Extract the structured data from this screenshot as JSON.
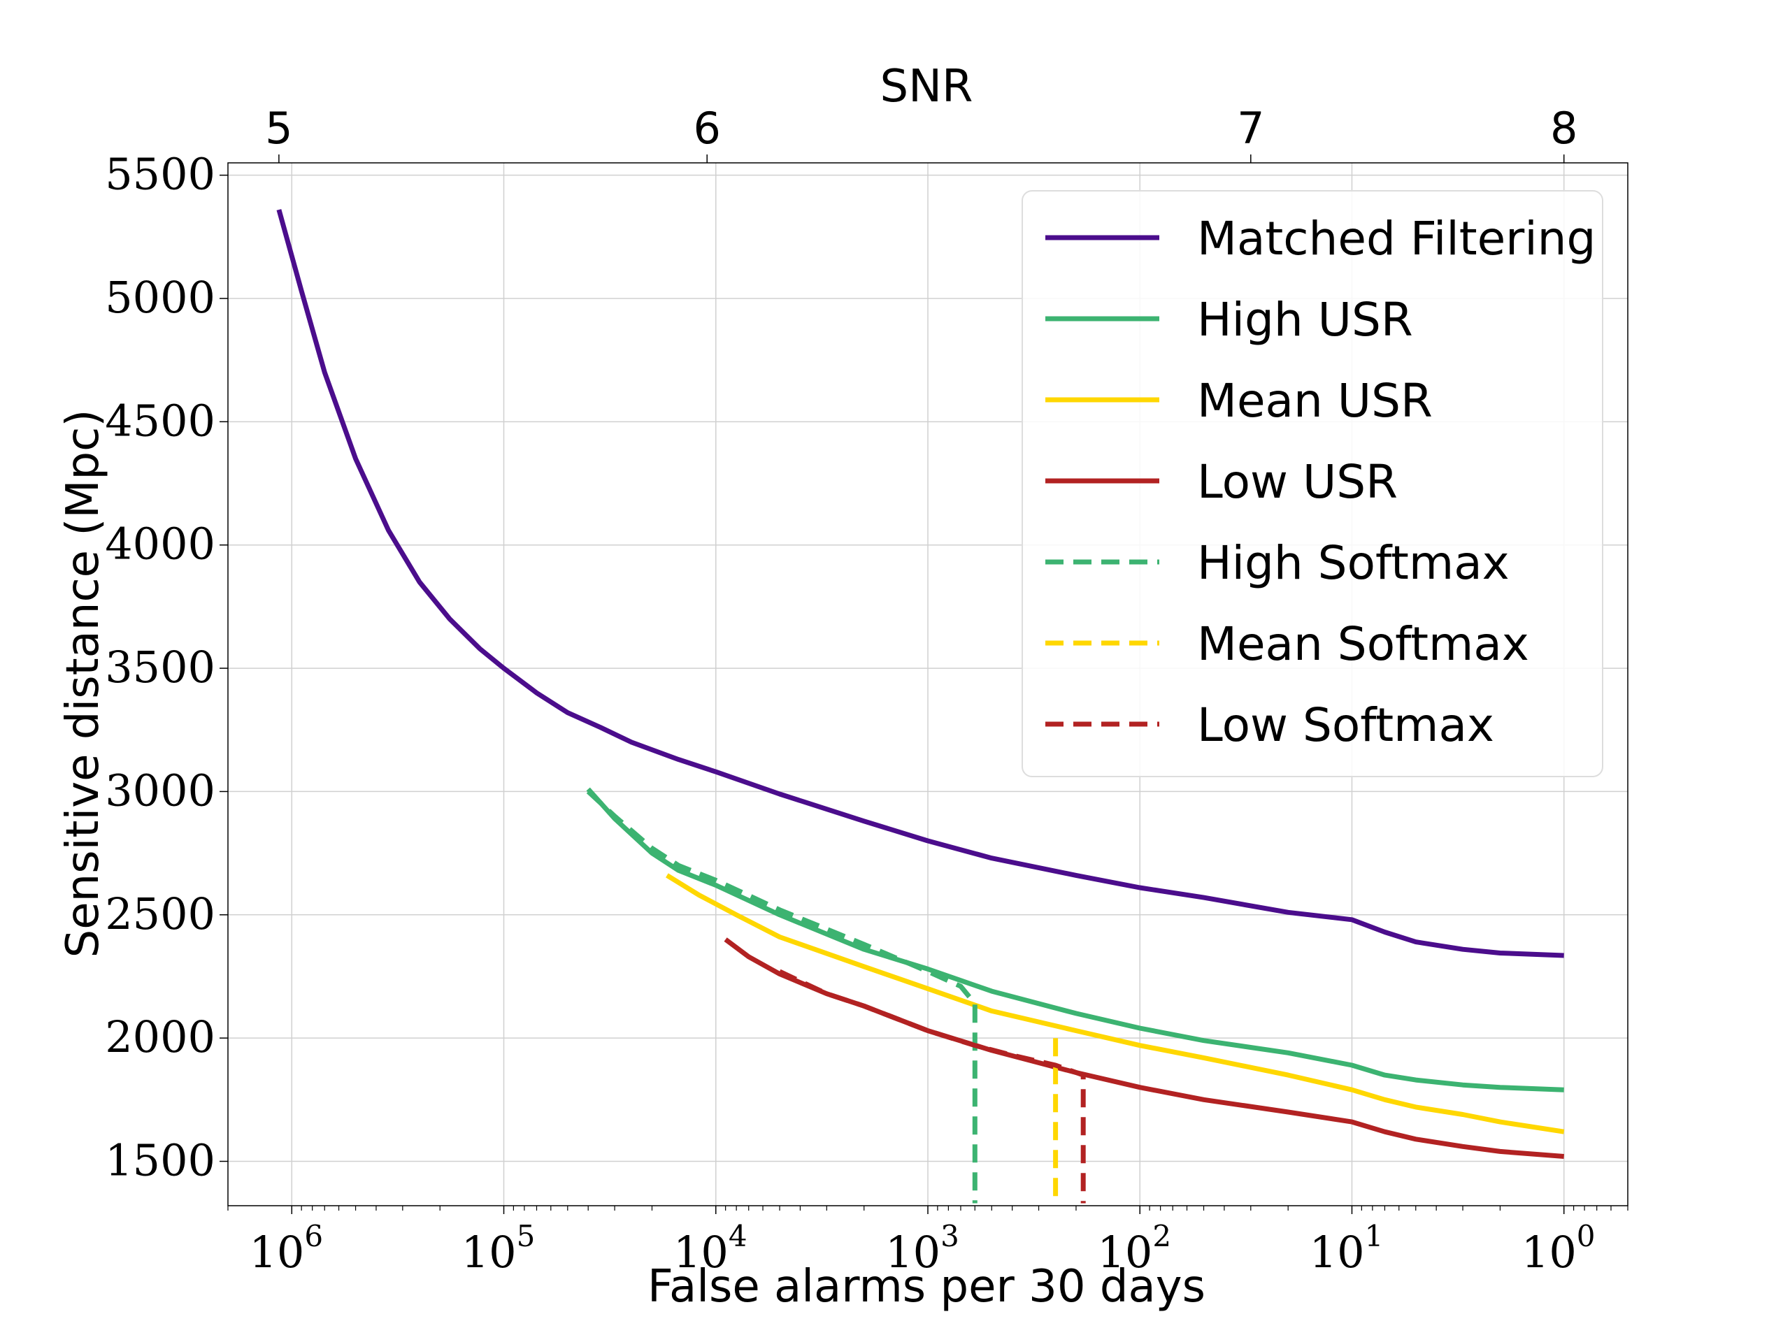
{
  "chart_data": {
    "type": "line",
    "xlabel": "False alarms per 30 days",
    "ylabel": "Sensitive distance (Mpc)",
    "top_xlabel": "SNR",
    "x_scale": "log",
    "x_inverted": true,
    "xlim": [
      2000000,
      0.5
    ],
    "ylim": [
      1320,
      5550
    ],
    "grid": true,
    "legend_position": "upper right",
    "x_ticks": [
      {
        "value": 1000000,
        "base": "10",
        "exp": "6"
      },
      {
        "value": 100000,
        "base": "10",
        "exp": "5"
      },
      {
        "value": 10000,
        "base": "10",
        "exp": "4"
      },
      {
        "value": 1000,
        "base": "10",
        "exp": "3"
      },
      {
        "value": 100,
        "base": "10",
        "exp": "2"
      },
      {
        "value": 10,
        "base": "10",
        "exp": "1"
      },
      {
        "value": 1,
        "base": "10",
        "exp": "0"
      }
    ],
    "y_ticks": [
      1500,
      2000,
      2500,
      3000,
      3500,
      4000,
      4500,
      5000,
      5500
    ],
    "top_ticks": [
      {
        "label": "5",
        "far": 1150000
      },
      {
        "label": "6",
        "far": 11000
      },
      {
        "label": "7",
        "far": 30
      },
      {
        "label": "8",
        "far": 1
      }
    ],
    "series": [
      {
        "name": "Matched Filtering",
        "color": "#4b0d8c",
        "dash": "solid",
        "x": [
          1150000,
          900000,
          700000,
          500000,
          350000,
          250000,
          180000,
          130000,
          100000,
          70000,
          50000,
          35000,
          25000,
          15000,
          10000,
          5000,
          2000,
          1000,
          500,
          200,
          100,
          50,
          20,
          10,
          7,
          5,
          3,
          2,
          1
        ],
        "y": [
          5360,
          5030,
          4700,
          4350,
          4060,
          3850,
          3700,
          3580,
          3500,
          3400,
          3320,
          3260,
          3200,
          3130,
          3080,
          2990,
          2880,
          2800,
          2730,
          2660,
          2610,
          2570,
          2510,
          2480,
          2430,
          2390,
          2360,
          2345,
          2335
        ]
      },
      {
        "name": "High USR",
        "color": "#3cb371",
        "dash": "solid",
        "x": [
          40000,
          30000,
          20000,
          15000,
          10000,
          5000,
          2000,
          1000,
          500,
          200,
          100,
          50,
          20,
          10,
          7,
          5,
          3,
          2,
          1
        ],
        "y": [
          3010,
          2890,
          2750,
          2680,
          2620,
          2500,
          2360,
          2280,
          2190,
          2100,
          2040,
          1990,
          1940,
          1890,
          1850,
          1830,
          1810,
          1800,
          1790
        ]
      },
      {
        "name": "Mean USR",
        "color": "#ffd700",
        "dash": "solid",
        "x": [
          17000,
          12000,
          8000,
          5000,
          2000,
          1000,
          500,
          200,
          100,
          50,
          20,
          10,
          7,
          5,
          3,
          2,
          1
        ],
        "y": [
          2660,
          2580,
          2500,
          2410,
          2290,
          2200,
          2110,
          2030,
          1970,
          1920,
          1850,
          1790,
          1750,
          1720,
          1690,
          1660,
          1620
        ]
      },
      {
        "name": "Low USR",
        "color": "#b22222",
        "dash": "solid",
        "x": [
          9000,
          7000,
          5000,
          3000,
          2000,
          1000,
          500,
          200,
          100,
          50,
          20,
          10,
          7,
          5,
          3,
          2,
          1
        ],
        "y": [
          2400,
          2330,
          2260,
          2180,
          2130,
          2030,
          1950,
          1860,
          1800,
          1750,
          1700,
          1660,
          1620,
          1590,
          1560,
          1540,
          1520
        ]
      },
      {
        "name": "High Softmax",
        "color": "#3cb371",
        "dash": "dashed",
        "x": [
          40000,
          30000,
          20000,
          15000,
          10000,
          5000,
          2000,
          1000,
          700,
          600,
          600
        ],
        "y": [
          3000,
          2900,
          2770,
          2700,
          2640,
          2520,
          2380,
          2270,
          2210,
          2140,
          1330
        ]
      },
      {
        "name": "Mean Softmax",
        "color": "#ffd700",
        "dash": "dashed",
        "x": [
          250,
          250
        ],
        "y": [
          2000,
          1330
        ]
      },
      {
        "name": "Low Softmax",
        "color": "#b22222",
        "dash": "dashed",
        "x": [
          5000,
          3000,
          2000,
          1000,
          600,
          400,
          250,
          185,
          185
        ],
        "y": [
          2270,
          2180,
          2130,
          2030,
          1970,
          1930,
          1890,
          1850,
          1330
        ]
      }
    ]
  }
}
